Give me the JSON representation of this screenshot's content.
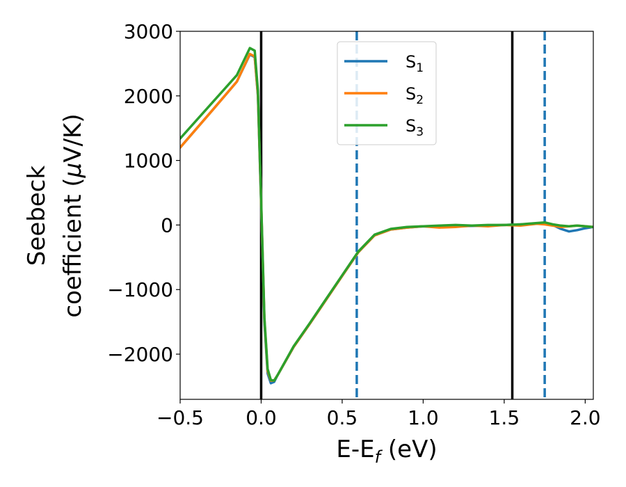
{
  "chart_data": {
    "type": "line",
    "xlabel": {
      "main": "E-E",
      "sub": "f",
      "tail": " (eV)"
    },
    "ylabel": {
      "line1": "Seebeck",
      "line2_main": "coefficient  (",
      "line2_mu": "μ",
      "line2_tail": "V/K)"
    },
    "xlim": [
      -0.5,
      2.05
    ],
    "ylim": [
      -2700,
      3000
    ],
    "xticks": [
      -0.5,
      0.0,
      0.5,
      1.0,
      1.5,
      2.0
    ],
    "xtick_labels": [
      "−0.5",
      "0.0",
      "0.5",
      "1.0",
      "1.5",
      "2.0"
    ],
    "yticks": [
      -2000,
      -1000,
      0,
      1000,
      2000,
      3000
    ],
    "ytick_labels": [
      "−2000",
      "−1000",
      "0",
      "1000",
      "2000",
      "3000"
    ],
    "grid": false,
    "legend_position": "top-center",
    "vlines": [
      {
        "x": 0.0,
        "style": "solid",
        "color": "#000000"
      },
      {
        "x": 1.55,
        "style": "solid",
        "color": "#000000"
      },
      {
        "x": 0.59,
        "style": "dashed",
        "color": "#1f77b4"
      },
      {
        "x": 1.75,
        "style": "dashed",
        "color": "#1f77b4"
      }
    ],
    "series": [
      {
        "name": {
          "main": "S",
          "sub": "1"
        },
        "color": "#1f77b4",
        "x": [
          -0.5,
          -0.3,
          -0.15,
          -0.07,
          -0.04,
          -0.02,
          0.0,
          0.02,
          0.04,
          0.06,
          0.08,
          0.1,
          0.2,
          0.3,
          0.4,
          0.5,
          0.6,
          0.7,
          0.8,
          0.9,
          1.0,
          1.1,
          1.2,
          1.3,
          1.4,
          1.5,
          1.6,
          1.7,
          1.75,
          1.8,
          1.85,
          1.9,
          1.95,
          2.0,
          2.05
        ],
        "y": [
          1200,
          1780,
          2220,
          2640,
          2600,
          2000,
          300,
          -1500,
          -2300,
          -2450,
          -2430,
          -2330,
          -1890,
          -1530,
          -1160,
          -790,
          -420,
          -160,
          -70,
          -40,
          -20,
          -30,
          -20,
          -15,
          -10,
          0,
          10,
          20,
          20,
          0,
          -60,
          -100,
          -80,
          -50,
          -30
        ]
      },
      {
        "name": {
          "main": "S",
          "sub": "2"
        },
        "color": "#ff7f0e",
        "x": [
          -0.5,
          -0.3,
          -0.15,
          -0.07,
          -0.04,
          -0.02,
          0.0,
          0.02,
          0.04,
          0.06,
          0.08,
          0.1,
          0.2,
          0.3,
          0.4,
          0.5,
          0.6,
          0.7,
          0.8,
          0.9,
          1.0,
          1.1,
          1.2,
          1.3,
          1.4,
          1.5,
          1.6,
          1.7,
          1.75,
          1.8,
          1.85,
          1.9,
          1.95,
          2.0,
          2.05
        ],
        "y": [
          1200,
          1780,
          2220,
          2650,
          2610,
          2020,
          330,
          -1450,
          -2260,
          -2410,
          -2410,
          -2330,
          -1890,
          -1530,
          -1160,
          -790,
          -420,
          -160,
          -70,
          -40,
          -20,
          -40,
          -30,
          -10,
          -20,
          0,
          -10,
          20,
          10,
          -10,
          -30,
          -20,
          -10,
          -20,
          -30
        ]
      },
      {
        "name": {
          "main": "S",
          "sub": "3"
        },
        "color": "#2ca02c",
        "x": [
          -0.5,
          -0.3,
          -0.15,
          -0.07,
          -0.04,
          -0.02,
          0.0,
          0.02,
          0.04,
          0.06,
          0.08,
          0.1,
          0.2,
          0.3,
          0.4,
          0.5,
          0.6,
          0.7,
          0.8,
          0.9,
          1.0,
          1.1,
          1.2,
          1.3,
          1.4,
          1.5,
          1.6,
          1.7,
          1.75,
          1.8,
          1.85,
          1.9,
          1.95,
          2.0,
          2.05
        ],
        "y": [
          1340,
          1900,
          2320,
          2740,
          2700,
          2080,
          360,
          -1430,
          -2230,
          -2400,
          -2410,
          -2330,
          -1880,
          -1520,
          -1150,
          -780,
          -410,
          -150,
          -60,
          -30,
          -20,
          -10,
          0,
          -10,
          0,
          0,
          10,
          30,
          40,
          10,
          -10,
          -20,
          -10,
          -20,
          -30
        ]
      }
    ]
  }
}
